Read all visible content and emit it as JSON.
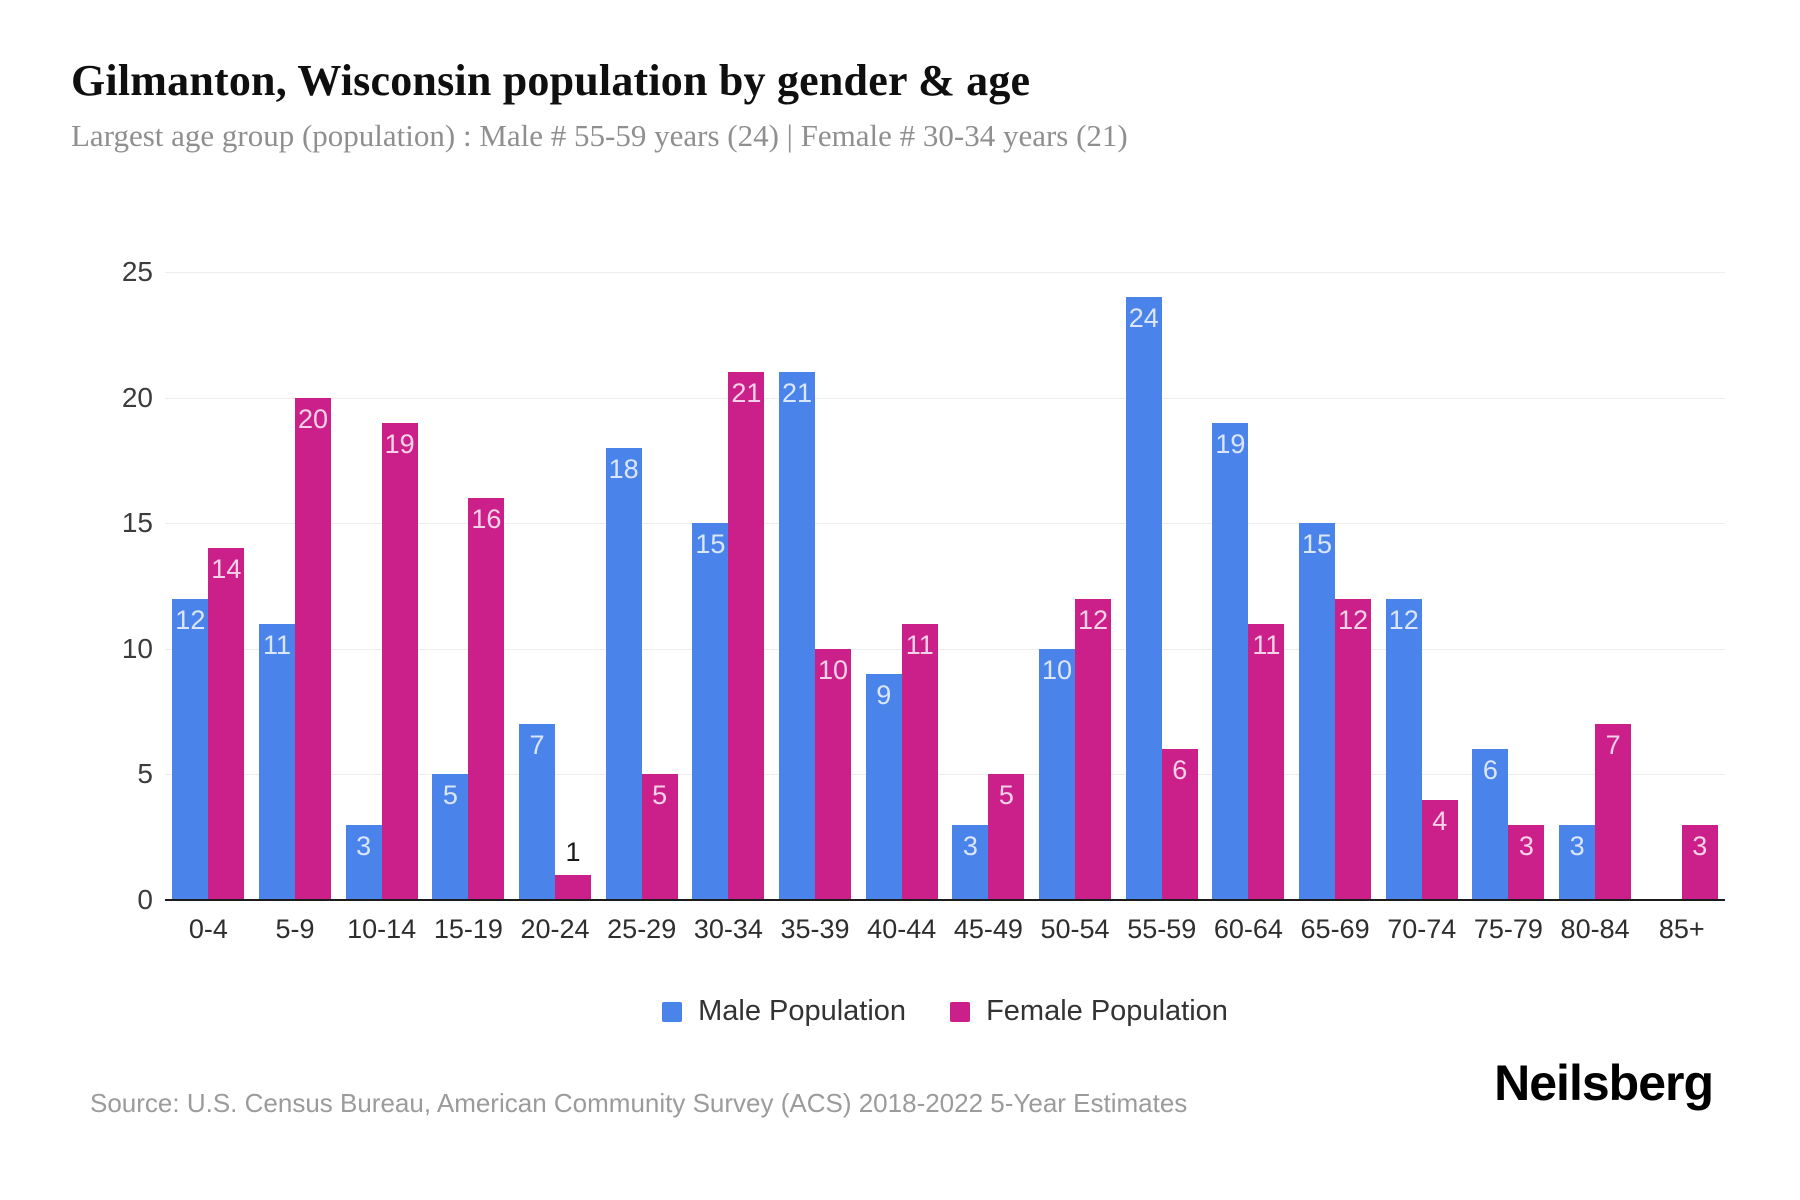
{
  "header": {
    "title": "Gilmanton, Wisconsin population by gender & age",
    "subtitle": "Largest age group (population) : Male # 55-59 years (24) | Female # 30-34 years (21)"
  },
  "chart_data": {
    "type": "bar",
    "title": "Gilmanton, Wisconsin population by gender & age",
    "categories": [
      "0-4",
      "5-9",
      "10-14",
      "15-19",
      "20-24",
      "25-29",
      "30-34",
      "35-39",
      "40-44",
      "45-49",
      "50-54",
      "55-59",
      "60-64",
      "65-69",
      "70-74",
      "75-79",
      "80-84",
      "85+"
    ],
    "series": [
      {
        "name": "Male Population",
        "color": "#4a84ea",
        "values": [
          12,
          11,
          3,
          5,
          7,
          18,
          15,
          21,
          9,
          3,
          10,
          24,
          19,
          15,
          12,
          6,
          3,
          0
        ]
      },
      {
        "name": "Female Population",
        "color": "#cb2089",
        "values": [
          14,
          20,
          19,
          16,
          1,
          5,
          21,
          10,
          11,
          5,
          12,
          6,
          11,
          12,
          4,
          3,
          7,
          3
        ]
      }
    ],
    "xlabel": "",
    "ylabel": "",
    "ylim": [
      0,
      25
    ],
    "yticks": [
      0,
      5,
      10,
      15,
      20,
      25
    ],
    "grid": true,
    "legend_position": "bottom"
  },
  "footer": {
    "source": "Source: U.S. Census Bureau, American Community Survey (ACS) 2018-2022 5-Year Estimates",
    "brand": "Neilsberg"
  }
}
